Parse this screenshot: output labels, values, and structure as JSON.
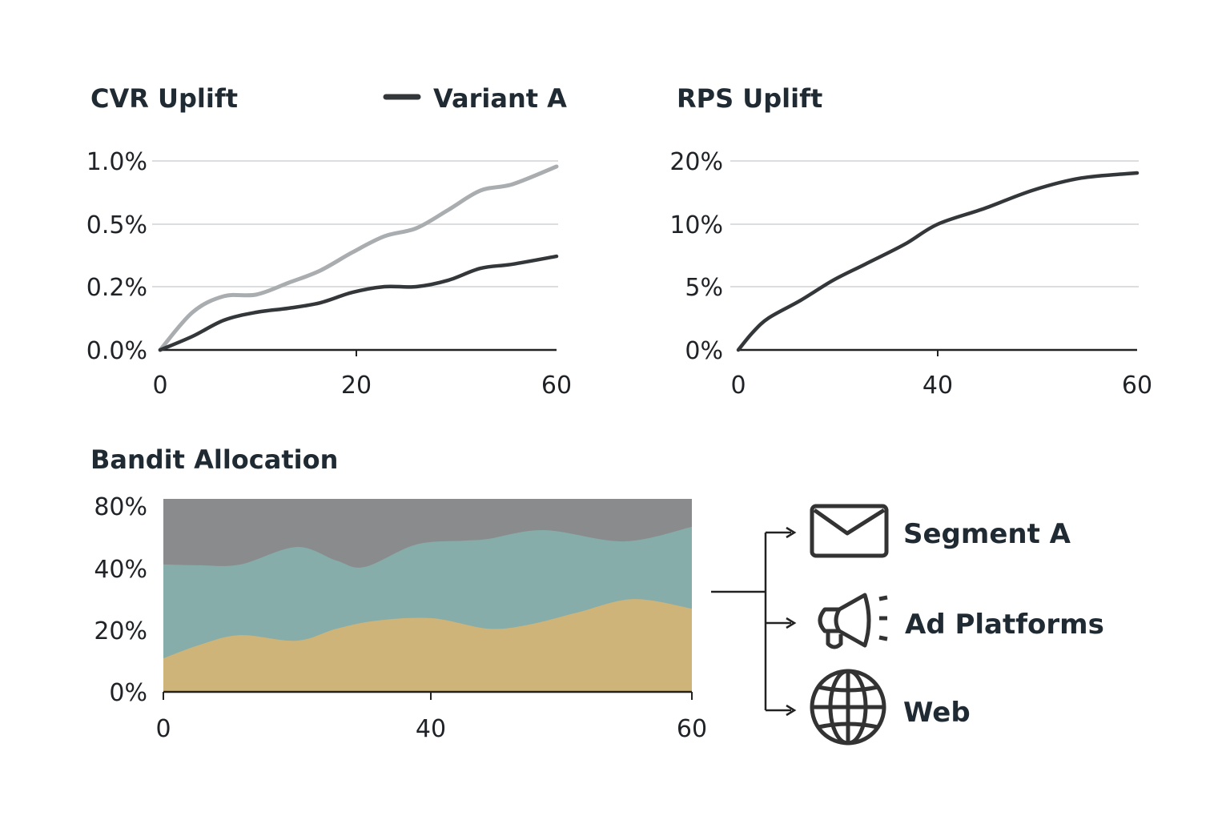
{
  "colors": {
    "dark_line": "#33373a",
    "light_line": "#a9adaf",
    "axis": "#222",
    "area_top": "#8a8b8c",
    "area_mid": "#86ada9",
    "area_bottom": "#cfb47a",
    "icon": "#333"
  },
  "chart_data": [
    {
      "type": "line",
      "title": "CVR Uplift",
      "legend": {
        "entries": [
          "Variant A"
        ],
        "placement": "top-right"
      },
      "x_ticks": [
        0,
        20,
        60
      ],
      "x_tick_labels": [
        "0",
        "20",
        "60"
      ],
      "y_ticks": [
        0,
        0.2,
        0.5,
        1.0
      ],
      "y_tick_labels": [
        "0.0%",
        "0.2%",
        "0.5%",
        "1.0%"
      ],
      "grid": true,
      "series": [
        {
          "name": "Variant A",
          "color": "#33373a",
          "x": [
            0,
            3.3,
            6.5,
            9.8,
            13.1,
            16.3,
            19.6,
            25.6,
            32,
            38.4,
            44.8,
            51.2,
            60
          ],
          "y": [
            0,
            0.043,
            0.094,
            0.119,
            0.132,
            0.149,
            0.182,
            0.2,
            0.2,
            0.231,
            0.288,
            0.308,
            0.346
          ]
        },
        {
          "color": "#a9adaf",
          "x": [
            0,
            3.3,
            6.5,
            9.8,
            13.1,
            16.3,
            19.6,
            25.6,
            32,
            38.4,
            44.8,
            51.2,
            60
          ],
          "y": [
            0,
            0.119,
            0.17,
            0.175,
            0.219,
            0.277,
            0.365,
            0.442,
            0.481,
            0.614,
            0.766,
            0.816,
            0.956
          ]
        }
      ]
    },
    {
      "type": "line",
      "title": "RPS Uplift",
      "x_ticks": [
        0,
        40,
        60
      ],
      "x_tick_labels": [
        "0",
        "40",
        "60"
      ],
      "y_ticks": [
        0,
        5,
        10,
        20
      ],
      "y_tick_labels": [
        "0%",
        "5%",
        "10%",
        "20%"
      ],
      "grid": true,
      "series": [
        {
          "color": "#33373a",
          "x": [
            0,
            2.9,
            6.1,
            12.5,
            19,
            25.4,
            33.4,
            40,
            44.7,
            49.6,
            54.4,
            60
          ],
          "y": [
            0,
            1.39,
            2.53,
            3.92,
            5.51,
            6.79,
            8.4,
            10,
            12.5,
            15.4,
            17.3,
            18.1
          ]
        }
      ]
    },
    {
      "type": "area",
      "title": "Bandit Allocation",
      "stacked": true,
      "x_ticks": [
        0,
        40,
        60
      ],
      "x_tick_labels": [
        "0",
        "40",
        "60"
      ],
      "y_ticks": [
        0,
        20,
        40,
        80
      ],
      "y_tick_labels": [
        "0%",
        "20%",
        "40%",
        "80%"
      ],
      "grid": false,
      "series": [
        {
          "color": "#cfb47a",
          "boundary_x": [
            0,
            5.5,
            11.5,
            19.9,
            25.9,
            31.9,
            40.1,
            44.4,
            47.5,
            51.2,
            55.5,
            60
          ],
          "boundary_y": [
            10.9,
            15.3,
            18.4,
            16.6,
            20.5,
            23.1,
            23.9,
            20.5,
            21.8,
            25.7,
            30.1,
            27.0
          ]
        },
        {
          "color": "#86ada9",
          "boundary_x": [
            0,
            5.5,
            11.5,
            19.9,
            25.9,
            30.1,
            37.8,
            42.6,
            44.4,
            48.7,
            54.8,
            60
          ],
          "boundary_y": [
            42.6,
            42.1,
            42.6,
            53.8,
            45.1,
            41.0,
            55.4,
            57.9,
            59.0,
            64.6,
            57.4,
            66.7
          ]
        },
        {
          "color": "#8a8b8c",
          "fills_to_top": true
        }
      ]
    }
  ],
  "channels": [
    {
      "label": "Segment A",
      "icon": "envelope-icon"
    },
    {
      "label": "Ad Platforms",
      "icon": "megaphone-icon"
    },
    {
      "label": "Web",
      "icon": "globe-icon"
    }
  ]
}
